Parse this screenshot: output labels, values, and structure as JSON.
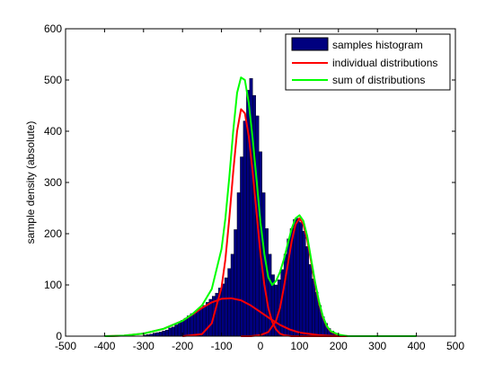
{
  "chart_data": {
    "type": "bar",
    "ylabel": "sample density (absolute)",
    "xlim": [
      -500,
      500
    ],
    "ylim": [
      0,
      600
    ],
    "xticks": [
      -500,
      -400,
      -300,
      -200,
      -100,
      0,
      100,
      200,
      300,
      400,
      500
    ],
    "yticks": [
      0,
      100,
      200,
      300,
      400,
      500,
      600
    ],
    "grid": false,
    "legend_position": "top-right",
    "histogram": {
      "name": "samples histogram",
      "color": "#00007f",
      "bin_width": 8,
      "bins": [
        [
          -300,
          2
        ],
        [
          -292,
          3
        ],
        [
          -284,
          4
        ],
        [
          -276,
          6
        ],
        [
          -268,
          7
        ],
        [
          -260,
          8
        ],
        [
          -252,
          10
        ],
        [
          -244,
          12
        ],
        [
          -236,
          16
        ],
        [
          -228,
          18
        ],
        [
          -220,
          22
        ],
        [
          -212,
          26
        ],
        [
          -204,
          31
        ],
        [
          -196,
          35
        ],
        [
          -188,
          40
        ],
        [
          -180,
          44
        ],
        [
          -172,
          47
        ],
        [
          -164,
          51
        ],
        [
          -156,
          55
        ],
        [
          -148,
          60
        ],
        [
          -140,
          66
        ],
        [
          -132,
          72
        ],
        [
          -124,
          78
        ],
        [
          -116,
          84
        ],
        [
          -108,
          94
        ],
        [
          -100,
          102
        ],
        [
          -92,
          114
        ],
        [
          -84,
          132
        ],
        [
          -76,
          160
        ],
        [
          -68,
          208
        ],
        [
          -60,
          280
        ],
        [
          -52,
          350
        ],
        [
          -44,
          420
        ],
        [
          -36,
          480
        ],
        [
          -28,
          503
        ],
        [
          -20,
          470
        ],
        [
          -12,
          430
        ],
        [
          -4,
          360
        ],
        [
          4,
          280
        ],
        [
          12,
          210
        ],
        [
          20,
          160
        ],
        [
          28,
          120
        ],
        [
          36,
          100
        ],
        [
          44,
          110
        ],
        [
          52,
          130
        ],
        [
          60,
          160
        ],
        [
          68,
          190
        ],
        [
          76,
          210
        ],
        [
          84,
          228
        ],
        [
          92,
          230
        ],
        [
          100,
          222
        ],
        [
          108,
          205
        ],
        [
          116,
          175
        ],
        [
          124,
          140
        ],
        [
          132,
          112
        ],
        [
          140,
          86
        ],
        [
          148,
          60
        ],
        [
          156,
          38
        ],
        [
          164,
          25
        ],
        [
          172,
          15
        ],
        [
          180,
          10
        ],
        [
          188,
          6
        ],
        [
          196,
          3
        ],
        [
          204,
          2
        ],
        [
          212,
          1
        ]
      ]
    },
    "series": [
      {
        "name": "individual distributions",
        "color": "#ff0000",
        "curves": [
          {
            "x": [
              -400,
              -350,
              -300,
              -250,
              -200,
              -175,
              -150,
              -125,
              -100,
              -75,
              -50,
              -25,
              0,
              25,
              50,
              75,
              100,
              150,
              200,
              250,
              300,
              350,
              400
            ],
            "y": [
              0,
              1,
              5,
              14,
              30,
              42,
              55,
              66,
              73,
              74,
              70,
              60,
              47,
              34,
              22,
              13,
              7,
              2,
              0,
              0,
              0,
              0,
              0
            ]
          },
          {
            "x": [
              -200,
              -150,
              -125,
              -100,
              -90,
              -80,
              -70,
              -60,
              -50,
              -40,
              -30,
              -20,
              -10,
              0,
              10,
              20,
              30,
              40,
              50,
              60,
              70,
              80,
              100,
              150,
              200
            ],
            "y": [
              0,
              4,
              25,
              95,
              150,
              230,
              320,
              400,
              443,
              435,
              390,
              320,
              240,
              160,
              100,
              55,
              28,
              13,
              5,
              2,
              1,
              0,
              0,
              0,
              0
            ]
          },
          {
            "x": [
              -50,
              -25,
              0,
              20,
              40,
              50,
              60,
              70,
              80,
              90,
              100,
              110,
              120,
              130,
              140,
              150,
              160,
              170,
              180,
              200,
              225,
              250,
              300
            ],
            "y": [
              0,
              0,
              2,
              8,
              30,
              55,
              95,
              140,
              185,
              218,
              230,
              218,
              188,
              145,
              102,
              65,
              37,
              19,
              9,
              2,
              0,
              0,
              0
            ]
          }
        ]
      },
      {
        "name": "sum of distributions",
        "color": "#00ff00",
        "curves": [
          {
            "x": [
              -400,
              -350,
              -300,
              -250,
              -200,
              -175,
              -150,
              -125,
              -100,
              -90,
              -80,
              -70,
              -60,
              -50,
              -40,
              -30,
              -20,
              -10,
              0,
              10,
              20,
              30,
              40,
              50,
              60,
              70,
              80,
              90,
              100,
              110,
              120,
              130,
              140,
              150,
              160,
              170,
              180,
              200,
              225,
              250,
              300,
              350,
              400
            ],
            "y": [
              0,
              1,
              5,
              14,
              30,
              43,
              60,
              92,
              170,
              230,
              310,
              400,
              475,
              505,
              500,
              455,
              385,
              305,
              222,
              160,
              115,
              100,
              108,
              125,
              150,
              180,
              210,
              230,
              236,
              225,
              195,
              150,
              106,
              68,
              39,
              20,
              10,
              3,
              0,
              0,
              0,
              0,
              0
            ]
          }
        ]
      }
    ]
  }
}
